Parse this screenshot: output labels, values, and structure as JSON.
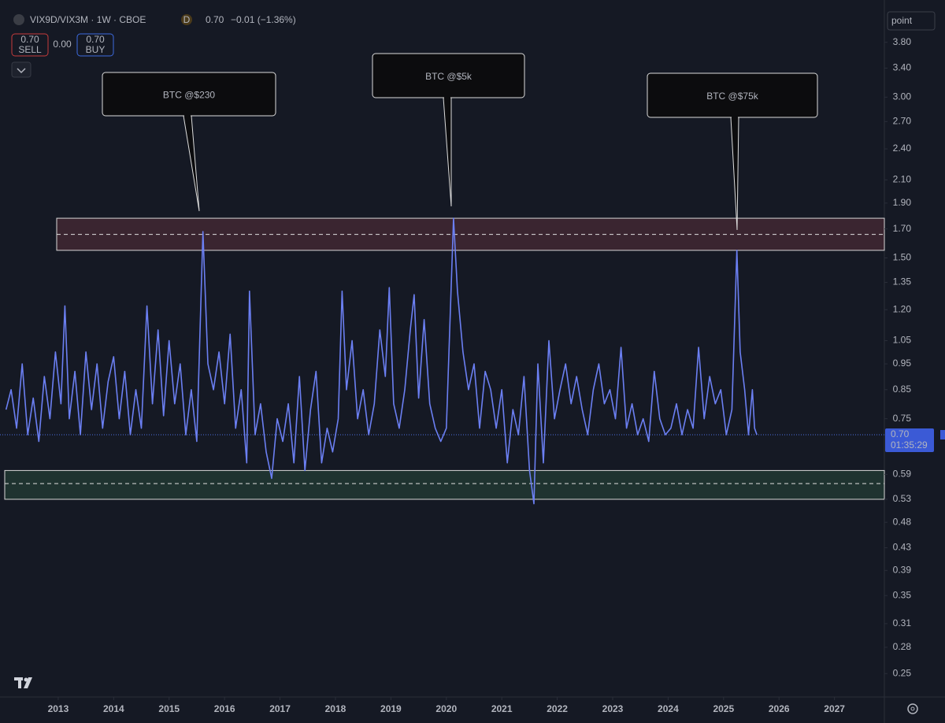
{
  "header": {
    "symbol": "VIX9D/VIX3M · 1W · CBOE",
    "badge": "D",
    "price": "0.70",
    "change": "−0.01 (−1.36%)"
  },
  "trade": {
    "sell_price": "0.70",
    "sell": "SELL",
    "spread": "0.00",
    "buy_price": "0.70",
    "buy": "BUY"
  },
  "scale_mode": "point",
  "chart_data": {
    "type": "line",
    "log_scale": true,
    "x": [
      2012.06,
      2012.15,
      2012.25,
      2012.35,
      2012.45,
      2012.55,
      2012.65,
      2012.75,
      2012.85,
      2012.95,
      2013.05,
      2013.12,
      2013.2,
      2013.3,
      2013.4,
      2013.5,
      2013.6,
      2013.7,
      2013.8,
      2013.9,
      2014.0,
      2014.1,
      2014.2,
      2014.3,
      2014.4,
      2014.5,
      2014.6,
      2014.7,
      2014.8,
      2014.9,
      2015.0,
      2015.1,
      2015.2,
      2015.3,
      2015.4,
      2015.5,
      2015.61,
      2015.7,
      2015.8,
      2015.9,
      2016.0,
      2016.1,
      2016.2,
      2016.3,
      2016.4,
      2016.45,
      2016.55,
      2016.65,
      2016.75,
      2016.85,
      2016.95,
      2017.05,
      2017.15,
      2017.25,
      2017.35,
      2017.45,
      2017.55,
      2017.65,
      2017.75,
      2017.85,
      2017.95,
      2018.05,
      2018.12,
      2018.2,
      2018.3,
      2018.4,
      2018.5,
      2018.6,
      2018.7,
      2018.8,
      2018.9,
      2018.97,
      2019.05,
      2019.15,
      2019.25,
      2019.35,
      2019.42,
      2019.5,
      2019.6,
      2019.7,
      2019.8,
      2019.9,
      2020.0,
      2020.13,
      2020.2,
      2020.3,
      2020.4,
      2020.5,
      2020.6,
      2020.7,
      2020.8,
      2020.9,
      2021.0,
      2021.1,
      2021.2,
      2021.3,
      2021.4,
      2021.5,
      2021.58,
      2021.65,
      2021.75,
      2021.85,
      2021.95,
      2022.05,
      2022.15,
      2022.25,
      2022.35,
      2022.45,
      2022.55,
      2022.65,
      2022.75,
      2022.85,
      2022.95,
      2023.05,
      2023.15,
      2023.25,
      2023.35,
      2023.45,
      2023.55,
      2023.65,
      2023.75,
      2023.85,
      2023.95,
      2024.05,
      2024.15,
      2024.25,
      2024.35,
      2024.45,
      2024.55,
      2024.65,
      2024.75,
      2024.85,
      2024.95,
      2025.05,
      2025.15,
      2025.24,
      2025.3,
      2025.38,
      2025.45,
      2025.52,
      2025.56,
      2025.6
    ],
    "series": [
      {
        "name": "VIX9D/VIX3M",
        "color": "#6b7ff2",
        "values": [
          0.78,
          0.85,
          0.72,
          0.95,
          0.7,
          0.82,
          0.68,
          0.9,
          0.75,
          1.0,
          0.8,
          1.22,
          0.75,
          0.92,
          0.7,
          1.0,
          0.78,
          0.95,
          0.72,
          0.88,
          0.98,
          0.75,
          0.92,
          0.7,
          0.85,
          0.72,
          1.22,
          0.8,
          1.1,
          0.76,
          1.05,
          0.8,
          0.95,
          0.7,
          0.85,
          0.68,
          1.68,
          0.95,
          0.85,
          1.0,
          0.8,
          1.08,
          0.72,
          0.85,
          0.62,
          1.3,
          0.7,
          0.8,
          0.65,
          0.58,
          0.75,
          0.68,
          0.8,
          0.62,
          0.9,
          0.6,
          0.78,
          0.92,
          0.62,
          0.72,
          0.65,
          0.75,
          1.3,
          0.85,
          1.05,
          0.75,
          0.85,
          0.7,
          0.8,
          1.1,
          0.9,
          1.32,
          0.8,
          0.72,
          0.85,
          1.1,
          1.28,
          0.82,
          1.15,
          0.8,
          0.72,
          0.68,
          0.72,
          1.78,
          1.3,
          1.0,
          0.85,
          0.95,
          0.72,
          0.92,
          0.85,
          0.72,
          0.85,
          0.62,
          0.78,
          0.7,
          0.9,
          0.6,
          0.52,
          0.95,
          0.62,
          1.05,
          0.75,
          0.85,
          0.95,
          0.8,
          0.9,
          0.78,
          0.7,
          0.85,
          0.95,
          0.8,
          0.85,
          0.75,
          1.02,
          0.72,
          0.8,
          0.7,
          0.75,
          0.68,
          0.92,
          0.75,
          0.7,
          0.72,
          0.8,
          0.7,
          0.78,
          0.72,
          1.02,
          0.75,
          0.9,
          0.8,
          0.85,
          0.7,
          0.78,
          1.55,
          1.0,
          0.85,
          0.7,
          0.85,
          0.72,
          0.7
        ]
      }
    ],
    "last": {
      "value": 0.7,
      "label": "0.70"
    },
    "countdown": "01:35:29",
    "zones": [
      {
        "low": 1.55,
        "high": 1.78,
        "mid": 1.66,
        "color": "#3a2530"
      },
      {
        "low": 0.53,
        "high": 0.6,
        "mid": 0.567,
        "color": "#1f3330"
      }
    ],
    "annotations": [
      {
        "text": "BTC @$230"
      },
      {
        "text": "BTC @$5k"
      },
      {
        "text": "BTC @$75k"
      }
    ],
    "xlim": [
      2011.95,
      2027.9
    ],
    "xticks": [
      2013,
      2014,
      2015,
      2016,
      2017,
      2018,
      2019,
      2020,
      2021,
      2022,
      2023,
      2024,
      2025,
      2026,
      2027
    ],
    "ylim": [
      0.226,
      4.56
    ],
    "yticks": [
      {
        "value": 3.8,
        "label": "3.80"
      },
      {
        "value": 3.4,
        "label": "3.40"
      },
      {
        "value": 3.0,
        "label": "3.00"
      },
      {
        "value": 2.7,
        "label": "2.70"
      },
      {
        "value": 2.4,
        "label": "2.40"
      },
      {
        "value": 2.1,
        "label": "2.10"
      },
      {
        "value": 1.9,
        "label": "1.90"
      },
      {
        "value": 1.7,
        "label": "1.70"
      },
      {
        "value": 1.5,
        "label": "1.50"
      },
      1.35,
      {
        "value": 1.2,
        "label": "1.20"
      },
      {
        "value": 1.05,
        "label": "1.05"
      },
      0.95,
      0.85,
      0.75,
      0.59,
      0.53,
      0.48,
      0.43,
      0.39,
      0.35,
      0.31,
      0.28,
      0.25
    ]
  }
}
